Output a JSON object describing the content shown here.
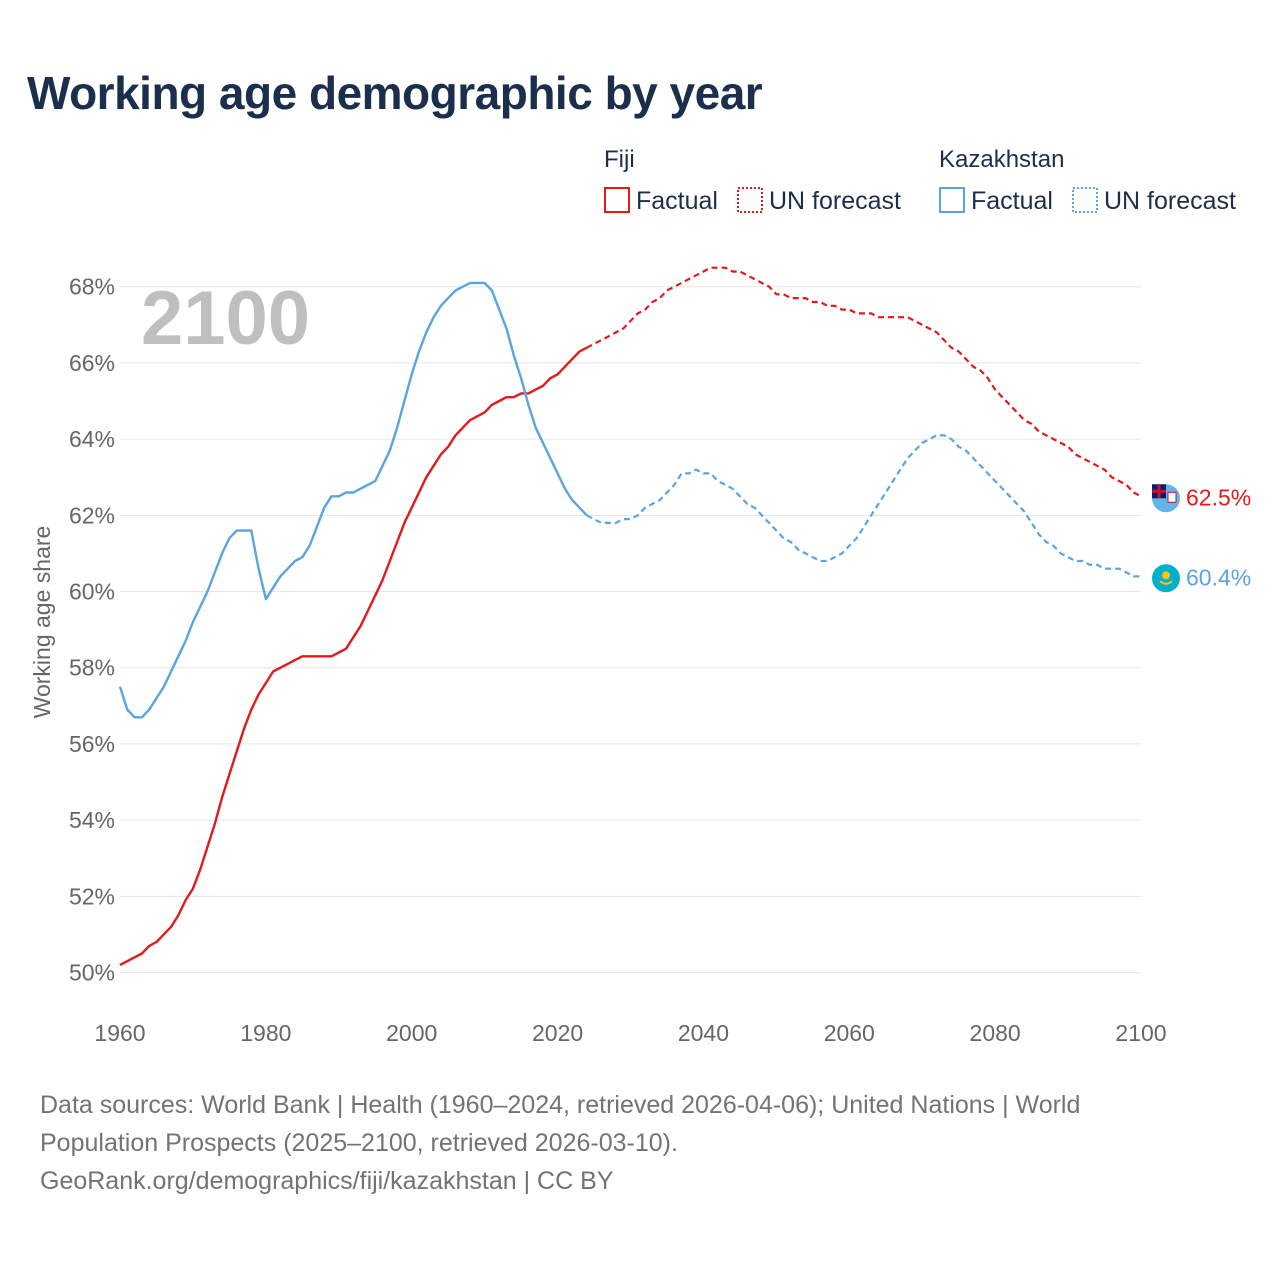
{
  "chart_data": {
    "type": "line",
    "title": "Working age demographic by year",
    "ylabel": "Working age share",
    "xlabel": "",
    "xlim": [
      1960,
      2100
    ],
    "ylim": [
      49.2,
      69.2
    ],
    "x_ticks": [
      {
        "value": 1960,
        "label": "1960"
      },
      {
        "value": 1980,
        "label": "1980"
      },
      {
        "value": 2000,
        "label": "2000"
      },
      {
        "value": 2020,
        "label": "2020"
      },
      {
        "value": 2040,
        "label": "2040"
      },
      {
        "value": 2060,
        "label": "2060"
      },
      {
        "value": 2080,
        "label": "2080"
      },
      {
        "value": 2100,
        "label": "2100"
      }
    ],
    "y_ticks": [
      {
        "value": 50,
        "label": "50%"
      },
      {
        "value": 52,
        "label": "52%"
      },
      {
        "value": 54,
        "label": "54%"
      },
      {
        "value": 56,
        "label": "56%"
      },
      {
        "value": 58,
        "label": "58%"
      },
      {
        "value": 60,
        "label": "60%"
      },
      {
        "value": 62,
        "label": "62%"
      },
      {
        "value": 64,
        "label": "64%"
      },
      {
        "value": 66,
        "label": "66%"
      },
      {
        "value": 68,
        "label": "68%"
      }
    ],
    "grid": true,
    "current_year": "2100",
    "factual_range": "1960–2024",
    "forecast_range": "2025–2100",
    "series": [
      {
        "name": "Fiji",
        "color": "#e31a1c",
        "end_label": "62.5%",
        "flag_icon": "fiji-flag-icon",
        "points": [
          [
            1960,
            50.2
          ],
          [
            1962,
            50.4
          ],
          [
            1963,
            50.5
          ],
          [
            1964,
            50.7
          ],
          [
            1965,
            50.8
          ],
          [
            1966,
            51.0
          ],
          [
            1967,
            51.2
          ],
          [
            1968,
            51.5
          ],
          [
            1969,
            51.9
          ],
          [
            1970,
            52.2
          ],
          [
            1971,
            52.7
          ],
          [
            1972,
            53.3
          ],
          [
            1973,
            53.9
          ],
          [
            1974,
            54.6
          ],
          [
            1975,
            55.2
          ],
          [
            1976,
            55.8
          ],
          [
            1977,
            56.4
          ],
          [
            1978,
            56.9
          ],
          [
            1979,
            57.3
          ],
          [
            1980,
            57.6
          ],
          [
            1981,
            57.9
          ],
          [
            1982,
            58.0
          ],
          [
            1983,
            58.1
          ],
          [
            1984,
            58.2
          ],
          [
            1985,
            58.3
          ],
          [
            1986,
            58.3
          ],
          [
            1987,
            58.3
          ],
          [
            1988,
            58.3
          ],
          [
            1989,
            58.3
          ],
          [
            1990,
            58.4
          ],
          [
            1991,
            58.5
          ],
          [
            1992,
            58.8
          ],
          [
            1993,
            59.1
          ],
          [
            1994,
            59.5
          ],
          [
            1995,
            59.9
          ],
          [
            1996,
            60.3
          ],
          [
            1997,
            60.8
          ],
          [
            1998,
            61.3
          ],
          [
            1999,
            61.8
          ],
          [
            2000,
            62.2
          ],
          [
            2001,
            62.6
          ],
          [
            2002,
            63.0
          ],
          [
            2003,
            63.3
          ],
          [
            2004,
            63.6
          ],
          [
            2005,
            63.8
          ],
          [
            2006,
            64.1
          ],
          [
            2007,
            64.3
          ],
          [
            2008,
            64.5
          ],
          [
            2009,
            64.6
          ],
          [
            2010,
            64.7
          ],
          [
            2011,
            64.9
          ],
          [
            2012,
            65.0
          ],
          [
            2013,
            65.1
          ],
          [
            2014,
            65.1
          ],
          [
            2015,
            65.2
          ],
          [
            2016,
            65.2
          ],
          [
            2017,
            65.3
          ],
          [
            2018,
            65.4
          ],
          [
            2019,
            65.6
          ],
          [
            2020,
            65.7
          ],
          [
            2021,
            65.9
          ],
          [
            2022,
            66.1
          ],
          [
            2023,
            66.3
          ],
          [
            2024,
            66.4
          ]
        ],
        "forecast_points": [
          [
            2024,
            66.4
          ],
          [
            2025,
            66.5
          ],
          [
            2026,
            66.6
          ],
          [
            2027,
            66.7
          ],
          [
            2028,
            66.8
          ],
          [
            2029,
            66.9
          ],
          [
            2030,
            67.1
          ],
          [
            2031,
            67.3
          ],
          [
            2032,
            67.4
          ],
          [
            2033,
            67.6
          ],
          [
            2034,
            67.7
          ],
          [
            2035,
            67.9
          ],
          [
            2036,
            68.0
          ],
          [
            2037,
            68.1
          ],
          [
            2038,
            68.2
          ],
          [
            2039,
            68.3
          ],
          [
            2040,
            68.4
          ],
          [
            2041,
            68.5
          ],
          [
            2042,
            68.5
          ],
          [
            2043,
            68.5
          ],
          [
            2044,
            68.4
          ],
          [
            2045,
            68.4
          ],
          [
            2046,
            68.3
          ],
          [
            2047,
            68.2
          ],
          [
            2048,
            68.1
          ],
          [
            2049,
            68.0
          ],
          [
            2050,
            67.8
          ],
          [
            2051,
            67.8
          ],
          [
            2052,
            67.7
          ],
          [
            2053,
            67.7
          ],
          [
            2054,
            67.7
          ],
          [
            2055,
            67.6
          ],
          [
            2056,
            67.6
          ],
          [
            2057,
            67.5
          ],
          [
            2058,
            67.5
          ],
          [
            2059,
            67.4
          ],
          [
            2060,
            67.4
          ],
          [
            2061,
            67.3
          ],
          [
            2062,
            67.3
          ],
          [
            2063,
            67.3
          ],
          [
            2064,
            67.2
          ],
          [
            2065,
            67.2
          ],
          [
            2066,
            67.2
          ],
          [
            2067,
            67.2
          ],
          [
            2068,
            67.2
          ],
          [
            2069,
            67.1
          ],
          [
            2070,
            67.0
          ],
          [
            2071,
            66.9
          ],
          [
            2072,
            66.8
          ],
          [
            2073,
            66.6
          ],
          [
            2074,
            66.4
          ],
          [
            2075,
            66.3
          ],
          [
            2076,
            66.1
          ],
          [
            2077,
            65.9
          ],
          [
            2078,
            65.8
          ],
          [
            2079,
            65.6
          ],
          [
            2080,
            65.3
          ],
          [
            2081,
            65.1
          ],
          [
            2082,
            64.9
          ],
          [
            2083,
            64.7
          ],
          [
            2084,
            64.5
          ],
          [
            2085,
            64.4
          ],
          [
            2086,
            64.2
          ],
          [
            2087,
            64.1
          ],
          [
            2088,
            64.0
          ],
          [
            2089,
            63.9
          ],
          [
            2090,
            63.8
          ],
          [
            2091,
            63.6
          ],
          [
            2092,
            63.5
          ],
          [
            2093,
            63.4
          ],
          [
            2094,
            63.3
          ],
          [
            2095,
            63.2
          ],
          [
            2096,
            63.0
          ],
          [
            2097,
            62.9
          ],
          [
            2098,
            62.8
          ],
          [
            2099,
            62.6
          ],
          [
            2100,
            62.5
          ]
        ]
      },
      {
        "name": "Kazakhstan",
        "color": "#5aa4e2",
        "end_label": "60.4%",
        "flag_icon": "kazakhstan-flag-icon",
        "points": [
          [
            1960,
            57.5
          ],
          [
            1961,
            56.9
          ],
          [
            1962,
            56.7
          ],
          [
            1963,
            56.7
          ],
          [
            1964,
            56.9
          ],
          [
            1965,
            57.2
          ],
          [
            1966,
            57.5
          ],
          [
            1967,
            57.9
          ],
          [
            1968,
            58.3
          ],
          [
            1969,
            58.7
          ],
          [
            1970,
            59.2
          ],
          [
            1971,
            59.6
          ],
          [
            1972,
            60.0
          ],
          [
            1973,
            60.5
          ],
          [
            1974,
            61.0
          ],
          [
            1975,
            61.4
          ],
          [
            1976,
            61.6
          ],
          [
            1977,
            61.6
          ],
          [
            1978,
            61.6
          ],
          [
            1979,
            60.6
          ],
          [
            1980,
            59.8
          ],
          [
            1981,
            60.1
          ],
          [
            1982,
            60.4
          ],
          [
            1983,
            60.6
          ],
          [
            1984,
            60.8
          ],
          [
            1985,
            60.9
          ],
          [
            1986,
            61.2
          ],
          [
            1987,
            61.7
          ],
          [
            1988,
            62.2
          ],
          [
            1989,
            62.5
          ],
          [
            1990,
            62.5
          ],
          [
            1991,
            62.6
          ],
          [
            1992,
            62.6
          ],
          [
            1993,
            62.7
          ],
          [
            1994,
            62.8
          ],
          [
            1995,
            62.9
          ],
          [
            1996,
            63.3
          ],
          [
            1997,
            63.7
          ],
          [
            1998,
            64.3
          ],
          [
            1999,
            65.0
          ],
          [
            2000,
            65.7
          ],
          [
            2001,
            66.3
          ],
          [
            2002,
            66.8
          ],
          [
            2003,
            67.2
          ],
          [
            2004,
            67.5
          ],
          [
            2005,
            67.7
          ],
          [
            2006,
            67.9
          ],
          [
            2007,
            68.0
          ],
          [
            2008,
            68.1
          ],
          [
            2009,
            68.1
          ],
          [
            2010,
            68.1
          ],
          [
            2011,
            67.9
          ],
          [
            2012,
            67.4
          ],
          [
            2013,
            66.9
          ],
          [
            2014,
            66.2
          ],
          [
            2015,
            65.6
          ],
          [
            2016,
            64.9
          ],
          [
            2017,
            64.3
          ],
          [
            2018,
            63.9
          ],
          [
            2019,
            63.5
          ],
          [
            2020,
            63.1
          ],
          [
            2021,
            62.7
          ],
          [
            2022,
            62.4
          ],
          [
            2023,
            62.2
          ],
          [
            2024,
            62.0
          ]
        ],
        "forecast_points": [
          [
            2024,
            62.0
          ],
          [
            2025,
            61.9
          ],
          [
            2026,
            61.8
          ],
          [
            2027,
            61.8
          ],
          [
            2028,
            61.8
          ],
          [
            2029,
            61.9
          ],
          [
            2030,
            61.9
          ],
          [
            2031,
            62.0
          ],
          [
            2032,
            62.2
          ],
          [
            2033,
            62.3
          ],
          [
            2034,
            62.4
          ],
          [
            2035,
            62.6
          ],
          [
            2036,
            62.8
          ],
          [
            2037,
            63.1
          ],
          [
            2038,
            63.1
          ],
          [
            2039,
            63.2
          ],
          [
            2040,
            63.1
          ],
          [
            2041,
            63.1
          ],
          [
            2042,
            62.9
          ],
          [
            2043,
            62.8
          ],
          [
            2044,
            62.7
          ],
          [
            2045,
            62.5
          ],
          [
            2046,
            62.3
          ],
          [
            2047,
            62.2
          ],
          [
            2048,
            62.0
          ],
          [
            2049,
            61.8
          ],
          [
            2050,
            61.6
          ],
          [
            2051,
            61.4
          ],
          [
            2052,
            61.3
          ],
          [
            2053,
            61.1
          ],
          [
            2054,
            61.0
          ],
          [
            2055,
            60.9
          ],
          [
            2056,
            60.8
          ],
          [
            2057,
            60.8
          ],
          [
            2058,
            60.9
          ],
          [
            2059,
            61.0
          ],
          [
            2060,
            61.2
          ],
          [
            2061,
            61.4
          ],
          [
            2062,
            61.7
          ],
          [
            2063,
            62.0
          ],
          [
            2064,
            62.3
          ],
          [
            2065,
            62.6
          ],
          [
            2066,
            62.9
          ],
          [
            2067,
            63.2
          ],
          [
            2068,
            63.5
          ],
          [
            2069,
            63.7
          ],
          [
            2070,
            63.9
          ],
          [
            2071,
            64.0
          ],
          [
            2072,
            64.1
          ],
          [
            2073,
            64.1
          ],
          [
            2074,
            64.0
          ],
          [
            2075,
            63.8
          ],
          [
            2076,
            63.7
          ],
          [
            2077,
            63.5
          ],
          [
            2078,
            63.3
          ],
          [
            2079,
            63.1
          ],
          [
            2080,
            62.9
          ],
          [
            2081,
            62.7
          ],
          [
            2082,
            62.5
          ],
          [
            2083,
            62.3
          ],
          [
            2084,
            62.1
          ],
          [
            2085,
            61.8
          ],
          [
            2086,
            61.5
          ],
          [
            2087,
            61.3
          ],
          [
            2088,
            61.2
          ],
          [
            2089,
            61.0
          ],
          [
            2090,
            60.9
          ],
          [
            2091,
            60.8
          ],
          [
            2092,
            60.8
          ],
          [
            2093,
            60.7
          ],
          [
            2094,
            60.7
          ],
          [
            2095,
            60.6
          ],
          [
            2096,
            60.6
          ],
          [
            2097,
            60.6
          ],
          [
            2098,
            60.5
          ],
          [
            2099,
            60.4
          ],
          [
            2100,
            60.4
          ]
        ]
      }
    ]
  },
  "legend": {
    "groups": [
      {
        "title": "Fiji",
        "color": "#e31a1c",
        "factual_label": "Factual",
        "forecast_label": "UN forecast"
      },
      {
        "title": "Kazakhstan",
        "color": "#5aa4e2",
        "factual_label": "Factual",
        "forecast_label": "UN forecast"
      }
    ]
  },
  "footer": {
    "sources_line": "Data sources: World Bank | Health (1960–2024, retrieved 2026-04-06); United Nations | World Population Prospects (2025–2100, retrieved 2026-03-10).",
    "url_line": "GeoRank.org/demographics/fiji/kazakhstan | CC BY"
  }
}
